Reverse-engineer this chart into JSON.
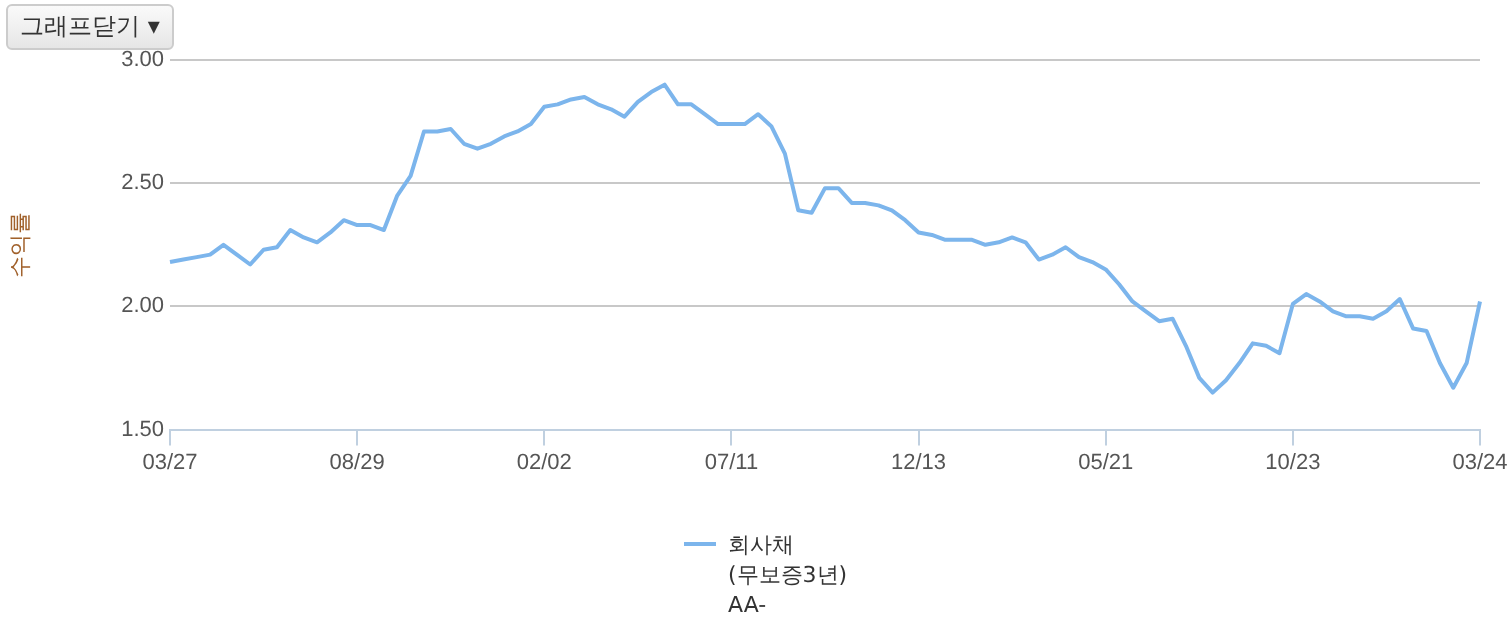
{
  "chart_data": {
    "type": "line",
    "annotations": [
      "그래프닫기 ▾"
    ],
    "ylabel": "수익률",
    "categories": [
      "03/27",
      null,
      null,
      null,
      null,
      null,
      null,
      null,
      null,
      null,
      null,
      null,
      null,
      null,
      "08/29",
      null,
      null,
      null,
      null,
      null,
      null,
      null,
      null,
      null,
      null,
      null,
      null,
      null,
      "02/02",
      null,
      null,
      null,
      null,
      null,
      null,
      null,
      null,
      null,
      null,
      null,
      null,
      null,
      "07/11",
      null,
      null,
      null,
      null,
      null,
      null,
      null,
      null,
      null,
      null,
      null,
      null,
      null,
      "12/13",
      null,
      null,
      null,
      null,
      null,
      null,
      null,
      null,
      null,
      null,
      null,
      null,
      null,
      "05/21",
      null,
      null,
      null,
      null,
      null,
      null,
      null,
      null,
      null,
      null,
      null,
      null,
      null,
      "10/23",
      null,
      null,
      null,
      null,
      null,
      null,
      null,
      null,
      null,
      null,
      null,
      null,
      null,
      "03/24"
    ],
    "series": [
      {
        "name": "회사채\n(무보증3년)\nAA-",
        "color": "#7cb5ec",
        "values": [
          2.18,
          2.19,
          2.2,
          2.21,
          2.25,
          2.21,
          2.17,
          2.23,
          2.24,
          2.31,
          2.28,
          2.26,
          2.3,
          2.35,
          2.33,
          2.33,
          2.31,
          2.45,
          2.53,
          2.71,
          2.71,
          2.72,
          2.66,
          2.64,
          2.66,
          2.69,
          2.71,
          2.74,
          2.81,
          2.82,
          2.84,
          2.85,
          2.82,
          2.8,
          2.77,
          2.83,
          2.87,
          2.9,
          2.82,
          2.82,
          2.78,
          2.74,
          2.74,
          2.74,
          2.78,
          2.73,
          2.62,
          2.39,
          2.38,
          2.48,
          2.48,
          2.42,
          2.42,
          2.41,
          2.39,
          2.35,
          2.3,
          2.29,
          2.27,
          2.27,
          2.27,
          2.25,
          2.26,
          2.28,
          2.26,
          2.19,
          2.21,
          2.24,
          2.2,
          2.18,
          2.15,
          2.09,
          2.02,
          1.98,
          1.94,
          1.95,
          1.84,
          1.71,
          1.65,
          1.7,
          1.77,
          1.85,
          1.84,
          1.81,
          2.01,
          2.05,
          2.02,
          1.98,
          1.96,
          1.96,
          1.95,
          1.98,
          2.03,
          1.91,
          1.9,
          1.77,
          1.67,
          1.77,
          2.02
        ]
      }
    ],
    "ylim": [
      1.5,
      3.0
    ],
    "yticks": [
      {
        "value": 1.5,
        "label": "1.50"
      },
      {
        "value": 2.0,
        "label": "2.00"
      },
      {
        "value": 2.5,
        "label": "2.50"
      },
      {
        "value": 3.0,
        "label": "3.00"
      }
    ],
    "grid": "y",
    "legend": "bottom",
    "marker": "none",
    "line_style": "solid"
  }
}
